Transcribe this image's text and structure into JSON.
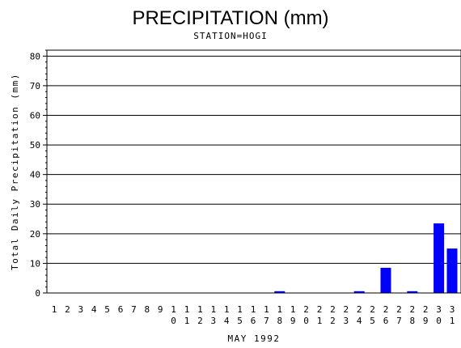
{
  "chart_data": {
    "type": "bar",
    "title": "PRECIPITATION (mm)",
    "subtitle": "STATION=HOGI",
    "xlabel": "MAY 1992",
    "ylabel": "Total Daily Precipitation (mm)",
    "ylim": [
      0,
      82
    ],
    "yticks": [
      0,
      10,
      20,
      30,
      40,
      50,
      60,
      70,
      80
    ],
    "grid": true,
    "categories": [
      "1",
      "2",
      "3",
      "4",
      "5",
      "6",
      "7",
      "8",
      "9",
      "10",
      "11",
      "12",
      "13",
      "14",
      "15",
      "16",
      "17",
      "18",
      "19",
      "20",
      "21",
      "22",
      "23",
      "24",
      "25",
      "26",
      "27",
      "28",
      "29",
      "30",
      "31"
    ],
    "values": [
      0,
      0,
      0,
      0,
      0,
      0,
      0,
      0,
      0,
      0,
      0,
      0,
      0,
      0,
      0,
      0,
      0,
      0.6,
      0,
      0,
      0,
      0,
      0,
      0.6,
      0,
      8.5,
      0,
      0.6,
      0,
      23.5,
      15
    ],
    "bar_color": "#0000ff"
  }
}
